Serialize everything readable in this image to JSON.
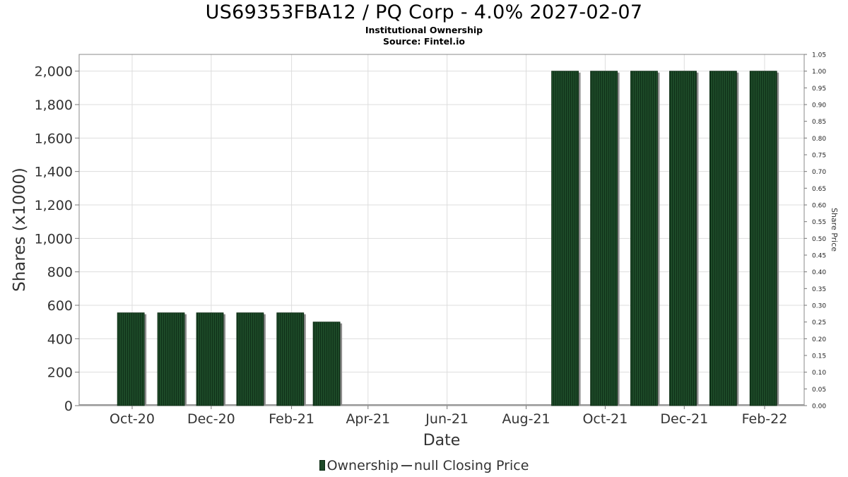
{
  "title": "US69353FBA12 / PQ Corp - 4.0% 2027-02-07",
  "subtitle": "Institutional Ownership",
  "source": "Source: Fintel.io",
  "legend": {
    "ownership": "Ownership",
    "price": "null Closing Price"
  },
  "colors": {
    "bar": "#1d4a28",
    "bar_stripe": "#0f3018",
    "bar_shadow": "#8c8c8c",
    "grid": "#dddddd",
    "axis": "#888888"
  },
  "chart_data": {
    "type": "bar",
    "title": "US69353FBA12 / PQ Corp - 4.0% 2027-02-07",
    "xlabel": "Date",
    "ylabel": "Shares (x1000)",
    "y2label": "Share Price",
    "x_ticks": [
      "Oct-20",
      "Dec-20",
      "Feb-21",
      "Apr-21",
      "Jun-21",
      "Aug-21",
      "Oct-21",
      "Dec-21",
      "Feb-22"
    ],
    "y_ticks": [
      "0",
      "200",
      "400",
      "600",
      "800",
      "1,000",
      "1,200",
      "1,400",
      "1,600",
      "1,800",
      "2,000"
    ],
    "y2_ticks": [
      "0.00",
      "0.05",
      "0.10",
      "0.15",
      "0.20",
      "0.25",
      "0.30",
      "0.35",
      "0.40",
      "0.45",
      "0.50",
      "0.55",
      "0.60",
      "0.65",
      "0.70",
      "0.75",
      "0.80",
      "0.85",
      "0.90",
      "0.95",
      "1.00",
      "1.05"
    ],
    "ylim": [
      0,
      2100
    ],
    "y2lim": [
      0,
      1.05
    ],
    "grid": true,
    "series": [
      {
        "name": "Ownership",
        "points": [
          {
            "date": "2020-09-30",
            "value": 555
          },
          {
            "date": "2020-10-31",
            "value": 555
          },
          {
            "date": "2020-11-30",
            "value": 555
          },
          {
            "date": "2020-12-31",
            "value": 555
          },
          {
            "date": "2021-01-31",
            "value": 555
          },
          {
            "date": "2021-02-28",
            "value": 500
          },
          {
            "date": "2021-08-31",
            "value": 2000
          },
          {
            "date": "2021-09-30",
            "value": 2000
          },
          {
            "date": "2021-10-31",
            "value": 2000
          },
          {
            "date": "2021-11-30",
            "value": 2000
          },
          {
            "date": "2021-12-31",
            "value": 2000
          },
          {
            "date": "2022-01-31",
            "value": 2000
          }
        ]
      }
    ]
  }
}
